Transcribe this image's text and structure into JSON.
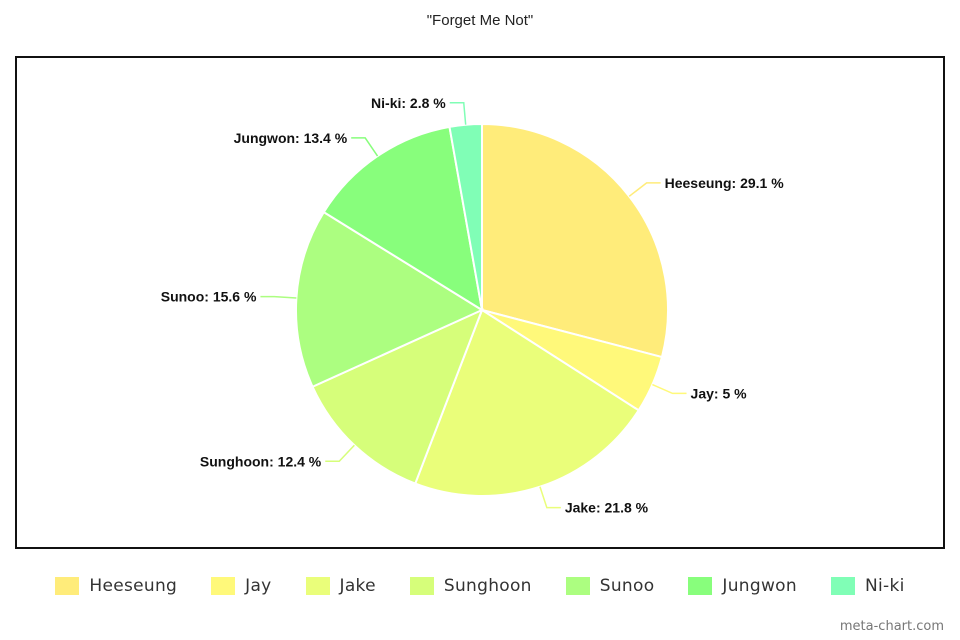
{
  "chart_data": {
    "type": "pie",
    "title": "\"Forget Me Not\"",
    "unit": "%",
    "legend_position": "bottom",
    "categories": [
      "Heeseung",
      "Jay",
      "Jake",
      "Sunghoon",
      "Sunoo",
      "Jungwon",
      "Ni-ki"
    ],
    "values": [
      29.1,
      5,
      21.8,
      12.4,
      15.6,
      13.4,
      2.8
    ],
    "labels": [
      "Heeseung: 29.1 %",
      "Jay: 5 %",
      "Jake: 21.8 %",
      "Sunghoon: 12.4 %",
      "Sunoo: 15.6 %",
      "Jungwon: 13.4 %",
      "Ni-ki: 2.8 %"
    ],
    "colors": [
      "#FFEC7A",
      "#FFF97A",
      "#EAFE7A",
      "#D6FE7A",
      "#ACFE80",
      "#88FE7C",
      "#80FEB6"
    ]
  },
  "watermark": "meta-chart.com"
}
